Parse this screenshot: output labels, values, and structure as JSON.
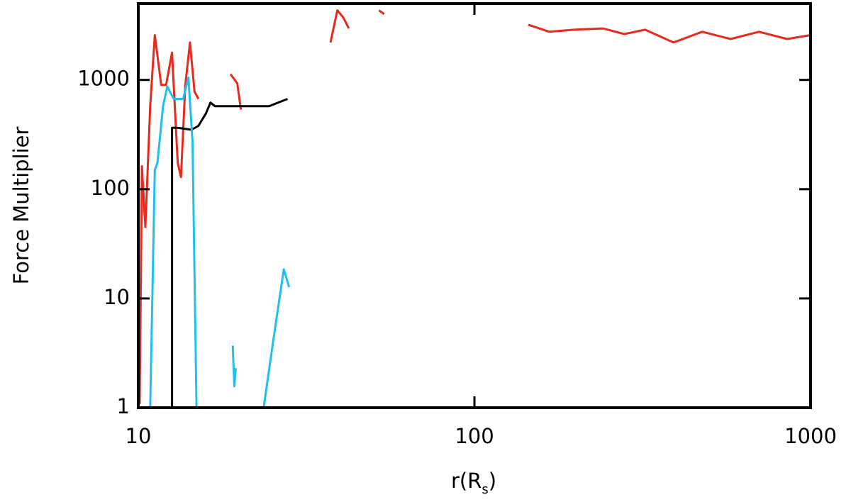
{
  "chart_data": {
    "type": "line",
    "xlabel": {
      "main": "r(R",
      "sub": "s",
      "close": ")"
    },
    "ylabel": "Force Multiplier",
    "xscale": "log",
    "yscale": "log",
    "xlim": [
      10,
      1000
    ],
    "ylim": [
      1,
      5000
    ],
    "xticks": [
      10,
      100,
      1000
    ],
    "yticks": [
      1,
      10,
      100,
      1000
    ],
    "series": [
      {
        "color": "#e8291c",
        "x": [
          10.1,
          10.25,
          10.5,
          10.85,
          11.2,
          11.7,
          12.1,
          12.6,
          13.1,
          13.4,
          13.8,
          14.25,
          14.7,
          15.1,
          null,
          18.8,
          19.7,
          20.2,
          null,
          37.3,
          39.1,
          40.7,
          42.3,
          null,
          52,
          53.9,
          null,
          144.6,
          167,
          198,
          241,
          279,
          322,
          391,
          476,
          578,
          702,
          852,
          1000
        ],
        "y": [
          1.08,
          162,
          45,
          575,
          2570,
          900,
          900,
          1780,
          174,
          129,
          900,
          2200,
          780,
          670,
          null,
          1130,
          930,
          535,
          null,
          2200,
          4330,
          3740,
          2960,
          null,
          4330,
          4000,
          null,
          3200,
          2760,
          2880,
          2960,
          2630,
          2880,
          2200,
          2760,
          2370,
          2760,
          2370,
          2570
        ]
      },
      {
        "color": "#000000",
        "x": [
          12.6,
          12.6,
          13.1,
          14.4,
          15.1,
          15.9,
          16.4,
          16.9,
          20.2,
          24.5,
          27.8
        ],
        "y": [
          1,
          365,
          365,
          350,
          380,
          495,
          620,
          575,
          575,
          575,
          670
        ]
      },
      {
        "color": "#1ec0ee",
        "x": [
          10.85,
          11.2,
          11.4,
          11.85,
          12.2,
          12.75,
          13.6,
          14.1,
          14.5,
          14.9,
          null,
          19.1,
          19.3,
          19.5,
          null,
          23.6,
          25.2,
          27.1,
          28.1
        ],
        "y": [
          1,
          150,
          174,
          575,
          870,
          670,
          670,
          1050,
          270,
          1,
          null,
          3.7,
          1.57,
          2.3,
          null,
          1,
          4.1,
          18.5,
          12.7
        ]
      }
    ]
  }
}
